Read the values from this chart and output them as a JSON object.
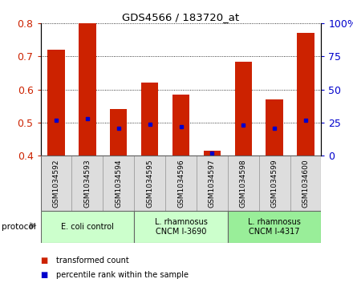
{
  "title": "GDS4566 / 183720_at",
  "samples": [
    "GSM1034592",
    "GSM1034593",
    "GSM1034594",
    "GSM1034595",
    "GSM1034596",
    "GSM1034597",
    "GSM1034598",
    "GSM1034599",
    "GSM1034600"
  ],
  "transformed_count": [
    0.72,
    0.8,
    0.54,
    0.62,
    0.585,
    0.415,
    0.685,
    0.57,
    0.77
  ],
  "percentile_rank": [
    27,
    28,
    21,
    24,
    22,
    2,
    23,
    21,
    27
  ],
  "bar_bottom": 0.4,
  "ylim_left": [
    0.4,
    0.8
  ],
  "ylim_right": [
    0,
    100
  ],
  "yticks_left": [
    0.4,
    0.5,
    0.6,
    0.7,
    0.8
  ],
  "yticks_right": [
    0,
    25,
    50,
    75,
    100
  ],
  "bar_color": "#cc2200",
  "dot_color": "#0000cc",
  "bg_color": "#ffffff",
  "groups": [
    {
      "label": "E. coli control",
      "indices": [
        0,
        1,
        2
      ],
      "color": "#ccffcc"
    },
    {
      "label": "L. rhamnosus\nCNCM I-3690",
      "indices": [
        3,
        4,
        5
      ],
      "color": "#ccffcc"
    },
    {
      "label": "L. rhamnosus\nCNCM I-4317",
      "indices": [
        6,
        7,
        8
      ],
      "color": "#99ee99"
    }
  ],
  "legend_items": [
    {
      "label": "transformed count",
      "color": "#cc2200"
    },
    {
      "label": "percentile rank within the sample",
      "color": "#0000cc"
    }
  ],
  "protocol_label": "protocol",
  "bar_width": 0.55
}
